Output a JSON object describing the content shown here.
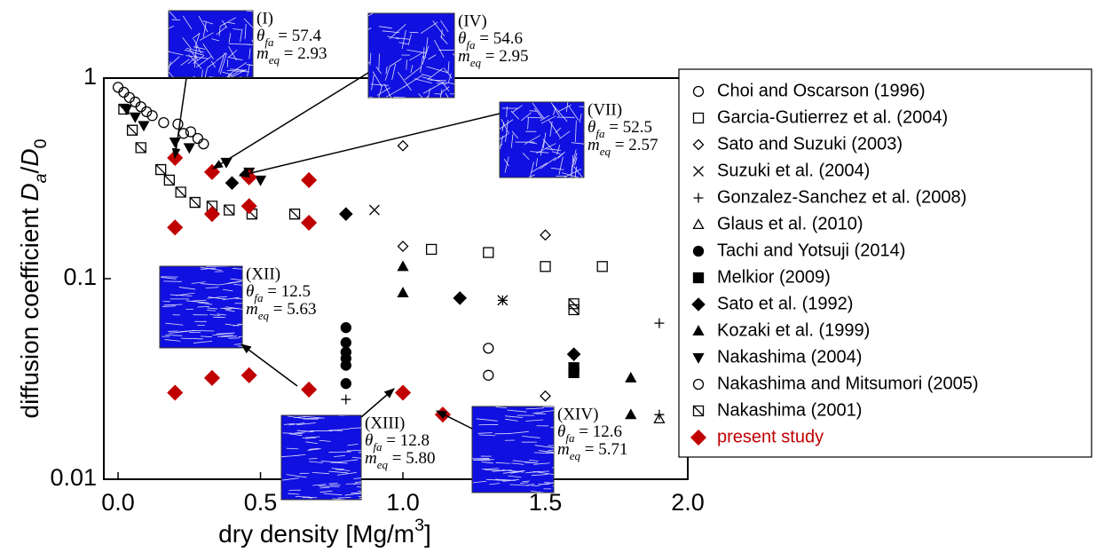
{
  "chart_data": {
    "type": "scatter",
    "xlabel_parts": [
      {
        "text": "dry density  [Mg/m"
      },
      {
        "text": "3",
        "sup": true
      },
      {
        "text": "]"
      }
    ],
    "ylabel_parts": [
      {
        "text": "diffusion coefficient  "
      },
      {
        "text": "D",
        "italic": true
      },
      {
        "text": "a",
        "sub": true,
        "italic": true
      },
      {
        "text": "/"
      },
      {
        "text": "D",
        "italic": true
      },
      {
        "text": "0",
        "sub": true
      }
    ],
    "xlim": [
      -0.05,
      2.0
    ],
    "ylim": [
      0.01,
      1
    ],
    "log_y": true,
    "xticks": [
      {
        "value": 0,
        "label": "0.0"
      },
      0.5,
      {
        "value": 1,
        "label": "1.0"
      },
      1.5,
      {
        "value": 2,
        "label": "2.0"
      }
    ],
    "yticks": [
      0.01,
      0.1,
      1
    ],
    "legend": "right",
    "series": [
      {
        "name": "Choi and Oscarson (1996)",
        "color": "#000000",
        "marker": "circle",
        "filled": false,
        "x": [
          0.16,
          0.21,
          0.23,
          0.255,
          0.28,
          0.3
        ],
        "values": [
          0.6,
          0.59,
          0.53,
          0.54,
          0.5,
          0.47
        ]
      },
      {
        "name": "Garcia-Gutierrez et al. (2004)",
        "color": "#000000",
        "marker": "square",
        "filled": false,
        "x": [
          1.1,
          1.3,
          1.5,
          1.7
        ],
        "values": [
          0.14,
          0.135,
          0.115,
          0.115
        ]
      },
      {
        "name": "Sato and Suzuki (2003)",
        "color": "#000000",
        "marker": "diamond",
        "filled": false,
        "x": [
          1.0,
          1.0,
          1.5,
          1.5
        ],
        "values": [
          0.46,
          0.145,
          0.165,
          0.026
        ]
      },
      {
        "name": "Suzuki et al. (2004)",
        "color": "#000000",
        "marker": "x",
        "filled": false,
        "x": [
          0.9,
          1.35
        ],
        "values": [
          0.22,
          0.078
        ]
      },
      {
        "name": "Gonzalez-Sanchez et al. (2008)",
        "color": "#000000",
        "marker": "plus",
        "filled": false,
        "x": [
          1.35,
          1.9,
          0.8,
          1.9
        ],
        "values": [
          0.078,
          0.06,
          0.025,
          0.021
        ]
      },
      {
        "name": "Glaus et al. (2010)",
        "color": "#000000",
        "marker": "triangle",
        "filled": false,
        "x": [
          1.9
        ],
        "values": [
          0.02
        ]
      },
      {
        "name": "Tachi and Yotsuji (2014)",
        "color": "#000000",
        "marker": "circle",
        "filled": true,
        "x": [
          0.8,
          0.8,
          0.8,
          0.8,
          0.8,
          0.8
        ],
        "values": [
          0.057,
          0.048,
          0.043,
          0.04,
          0.037,
          0.03
        ]
      },
      {
        "name": "Melkior (2009)",
        "color": "#000000",
        "marker": "square",
        "filled": true,
        "x": [
          1.6,
          1.6
        ],
        "values": [
          0.036,
          0.034
        ]
      },
      {
        "name": "Sato et al. (1992)",
        "color": "#000000",
        "marker": "diamond",
        "filled": true,
        "x": [
          0.4,
          0.45,
          0.8,
          1.2,
          1.6
        ],
        "values": [
          0.3,
          0.33,
          0.21,
          0.08,
          0.042
        ]
      },
      {
        "name": "Kozaki et al. (1999)",
        "color": "#000000",
        "marker": "triangle",
        "filled": true,
        "x": [
          1.0,
          1.0,
          1.8,
          1.8
        ],
        "values": [
          0.115,
          0.085,
          0.032,
          0.021
        ]
      },
      {
        "name": "Nakashima (2004)",
        "color": "#000000",
        "marker": "triangle-down",
        "filled": true,
        "x": [
          0.03,
          0.06,
          0.09,
          0.2,
          0.25,
          0.38,
          0.46,
          0.5
        ],
        "values": [
          0.7,
          0.64,
          0.58,
          0.48,
          0.45,
          0.38,
          0.34,
          0.31
        ]
      },
      {
        "name": "Nakashima and Mitsumori (2005)",
        "color": "#000000",
        "marker": "circle",
        "filled": false,
        "x": [
          0.0,
          0.02,
          0.04,
          0.06,
          0.08,
          0.1,
          0.12,
          1.3,
          1.3
        ],
        "values": [
          0.9,
          0.85,
          0.8,
          0.76,
          0.72,
          0.68,
          0.65,
          0.045,
          0.033
        ]
      },
      {
        "name": "Nakashima (2001)",
        "color": "#000000",
        "marker": "square-slash",
        "filled": false,
        "x": [
          0.02,
          0.05,
          0.08,
          0.15,
          0.18,
          0.22,
          0.27,
          0.33,
          0.39,
          0.47,
          0.62,
          1.6,
          1.6
        ],
        "values": [
          0.7,
          0.55,
          0.45,
          0.35,
          0.31,
          0.27,
          0.24,
          0.23,
          0.22,
          0.21,
          0.21,
          0.075,
          0.07
        ]
      },
      {
        "name": "present study",
        "color": "#c00000",
        "marker": "diamond",
        "filled": true,
        "x": [
          0.2,
          0.33,
          0.46,
          0.67,
          0.2,
          0.33,
          0.46,
          0.67,
          0.2,
          0.33,
          0.46,
          0.67,
          1.0,
          1.14
        ],
        "values": [
          0.4,
          0.34,
          0.32,
          0.31,
          0.18,
          0.21,
          0.23,
          0.19,
          0.027,
          0.032,
          0.033,
          0.028,
          0.027,
          0.021
        ]
      }
    ],
    "annotation_symbols": {
      "theta": "θ",
      "theta_sub": "fa",
      "m": "m",
      "m_sub": "eq",
      "equals": " = "
    },
    "annotations": [
      {
        "label": "(I)",
        "theta_fa": 57.4,
        "m_eq": 2.93
      },
      {
        "label": "(IV)",
        "theta_fa": 54.6,
        "m_eq": 2.95
      },
      {
        "label": "(VII)",
        "theta_fa": 52.5,
        "m_eq": 2.57
      },
      {
        "label": "(XII)",
        "theta_fa": 12.5,
        "m_eq": 5.63
      },
      {
        "label": "(XIII)",
        "theta_fa": 12.8,
        "m_eq": 5.8
      },
      {
        "label": "(XIV)",
        "theta_fa": 12.6,
        "m_eq": 5.71
      }
    ],
    "annotation_value_labels": {
      "4": {
        "m_eq": "5.80"
      }
    }
  }
}
